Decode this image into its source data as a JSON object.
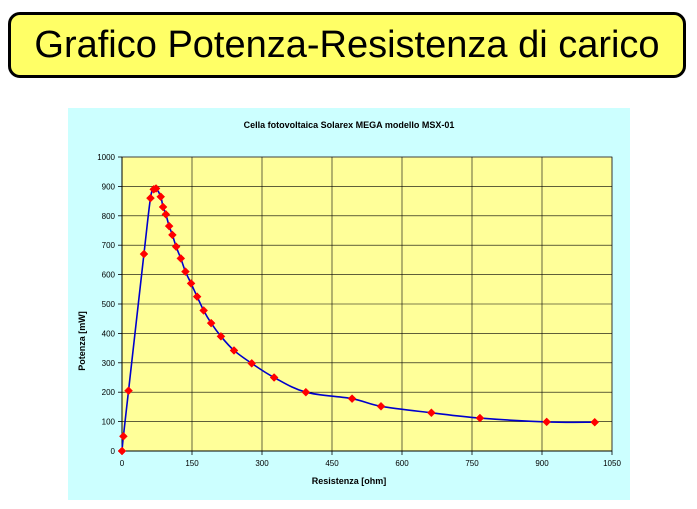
{
  "slide": {
    "title": "Grafico Potenza-Resistenza di carico"
  },
  "colors": {
    "title_fill": "#ffff66",
    "chart_bg": "#ccffff",
    "plot_bg": "#ffff99",
    "line": "#0000cc",
    "marker": "#ff0000"
  },
  "chart_data": {
    "type": "line",
    "title": "Cella fotovoltaica Solarex MEGA modello MSX-01",
    "xlabel": "Resistenza [ohm]",
    "ylabel": "Potenza [mW]",
    "xlim": [
      0,
      1050
    ],
    "ylim": [
      0,
      1000
    ],
    "xticks": [
      0,
      150,
      300,
      450,
      600,
      750,
      900,
      1050
    ],
    "yticks": [
      0,
      100,
      200,
      300,
      400,
      500,
      600,
      700,
      800,
      900,
      1000
    ],
    "grid": true,
    "legend": "none",
    "series": [
      {
        "x": [
          0,
          3,
          14,
          47,
          61,
          68,
          73,
          83,
          88,
          94,
          101,
          108,
          116,
          126,
          136,
          148,
          161,
          175,
          191,
          212,
          240,
          278,
          326,
          394,
          493,
          555,
          663,
          767,
          910,
          1013
        ],
        "y": [
          0,
          50,
          205,
          670,
          860,
          890,
          893,
          865,
          830,
          805,
          765,
          735,
          695,
          655,
          610,
          570,
          525,
          478,
          435,
          390,
          342,
          298,
          250,
          200,
          178,
          152,
          130,
          112,
          99,
          98
        ]
      }
    ]
  }
}
